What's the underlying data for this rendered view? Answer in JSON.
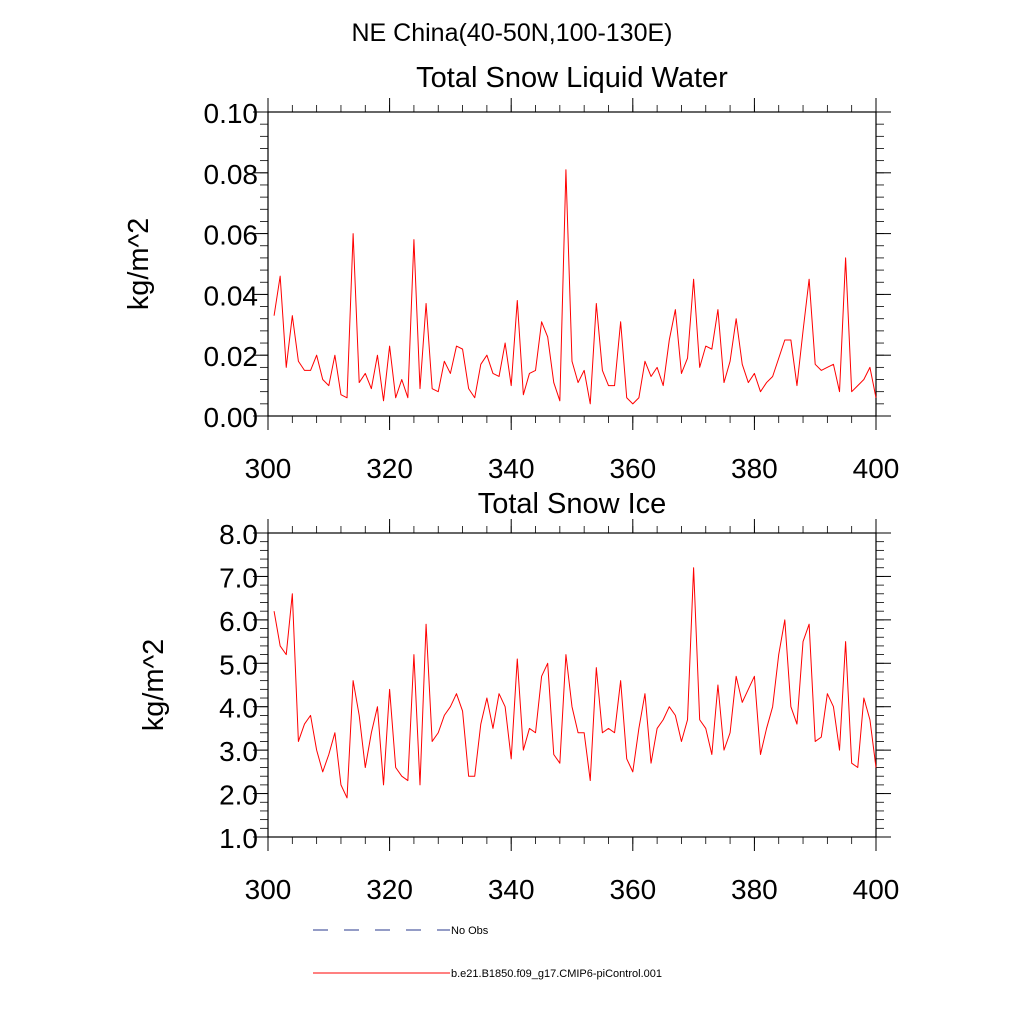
{
  "suptitle": "NE China(40-50N,100-130E)",
  "colors": {
    "model_line": "#ff0000",
    "obs_line": "#2a3a8c",
    "axis": "#000000"
  },
  "legend": {
    "entries": [
      {
        "label": "No Obs",
        "style": "dashed",
        "color": "#2a3a8c"
      },
      {
        "label": "b.e21.B1850.f09_g17.CMIP6-piControl.001",
        "style": "solid",
        "color": "#ff0000"
      }
    ]
  },
  "chart_data": [
    {
      "type": "line",
      "title": "Total Snow Liquid Water",
      "xlabel": "",
      "ylabel": "kg/m^2",
      "xlim": [
        300,
        400
      ],
      "ylim": [
        0.0,
        0.1
      ],
      "xticks": [
        300,
        320,
        340,
        360,
        380,
        400
      ],
      "xtick_labels": [
        "300",
        "320",
        "340",
        "360",
        "380",
        "400"
      ],
      "yticks": [
        0.0,
        0.02,
        0.04,
        0.06,
        0.08,
        0.1
      ],
      "ytick_labels": [
        "0.00",
        "0.02",
        "0.04",
        "0.06",
        "0.08",
        "0.10"
      ],
      "y_minor_step": 0.004,
      "x_start": 301,
      "series": [
        {
          "name": "b.e21.B1850.f09_g17.CMIP6-piControl.001",
          "values": [
            0.033,
            0.046,
            0.016,
            0.033,
            0.018,
            0.015,
            0.015,
            0.02,
            0.012,
            0.01,
            0.02,
            0.007,
            0.006,
            0.06,
            0.011,
            0.014,
            0.009,
            0.02,
            0.005,
            0.023,
            0.006,
            0.012,
            0.006,
            0.058,
            0.009,
            0.037,
            0.009,
            0.008,
            0.018,
            0.014,
            0.023,
            0.022,
            0.009,
            0.006,
            0.017,
            0.02,
            0.014,
            0.013,
            0.024,
            0.01,
            0.038,
            0.007,
            0.014,
            0.015,
            0.031,
            0.026,
            0.011,
            0.005,
            0.081,
            0.018,
            0.011,
            0.015,
            0.004,
            0.037,
            0.015,
            0.01,
            0.01,
            0.031,
            0.006,
            0.004,
            0.006,
            0.018,
            0.013,
            0.016,
            0.01,
            0.025,
            0.035,
            0.014,
            0.019,
            0.045,
            0.016,
            0.023,
            0.022,
            0.035,
            0.011,
            0.018,
            0.032,
            0.017,
            0.011,
            0.014,
            0.008,
            0.011,
            0.013,
            0.019,
            0.025,
            0.025,
            0.01,
            0.028,
            0.045,
            0.017,
            0.015,
            0.016,
            0.017,
            0.008,
            0.052,
            0.008,
            0.01,
            0.012,
            0.016,
            0.006
          ]
        }
      ]
    },
    {
      "type": "line",
      "title": "Total Snow Ice",
      "xlabel": "",
      "ylabel": "kg/m^2",
      "xlim": [
        300,
        400
      ],
      "ylim": [
        1.0,
        8.0
      ],
      "xticks": [
        300,
        320,
        340,
        360,
        380,
        400
      ],
      "xtick_labels": [
        "300",
        "320",
        "340",
        "360",
        "380",
        "400"
      ],
      "yticks": [
        1.0,
        2.0,
        3.0,
        4.0,
        5.0,
        6.0,
        7.0,
        8.0
      ],
      "ytick_labels": [
        "1.0",
        "2.0",
        "3.0",
        "4.0",
        "5.0",
        "6.0",
        "7.0",
        "8.0"
      ],
      "y_minor_step": 0.2,
      "x_start": 301,
      "series": [
        {
          "name": "b.e21.B1850.f09_g17.CMIP6-piControl.001",
          "values": [
            6.2,
            5.4,
            5.2,
            6.6,
            3.2,
            3.6,
            3.8,
            3.0,
            2.5,
            2.9,
            3.4,
            2.2,
            1.9,
            4.6,
            3.8,
            2.6,
            3.4,
            4.0,
            2.2,
            4.4,
            2.6,
            2.4,
            2.3,
            5.2,
            2.2,
            5.9,
            3.2,
            3.4,
            3.8,
            4.0,
            4.3,
            3.9,
            2.4,
            2.4,
            3.6,
            4.2,
            3.5,
            4.3,
            4.0,
            2.8,
            5.1,
            3.0,
            3.5,
            3.4,
            4.7,
            5.0,
            2.9,
            2.7,
            5.2,
            4.0,
            3.4,
            3.4,
            2.3,
            4.9,
            3.4,
            3.5,
            3.4,
            4.6,
            2.8,
            2.5,
            3.5,
            4.3,
            2.7,
            3.5,
            3.7,
            4.0,
            3.8,
            3.2,
            3.7,
            7.2,
            3.7,
            3.5,
            2.9,
            4.5,
            3.0,
            3.4,
            4.7,
            4.1,
            4.4,
            4.7,
            2.9,
            3.5,
            4.0,
            5.2,
            6.0,
            4.0,
            3.6,
            5.5,
            5.9,
            3.2,
            3.3,
            4.3,
            4.0,
            3.0,
            5.5,
            2.7,
            2.6,
            4.2,
            3.7,
            2.6
          ]
        }
      ]
    }
  ]
}
